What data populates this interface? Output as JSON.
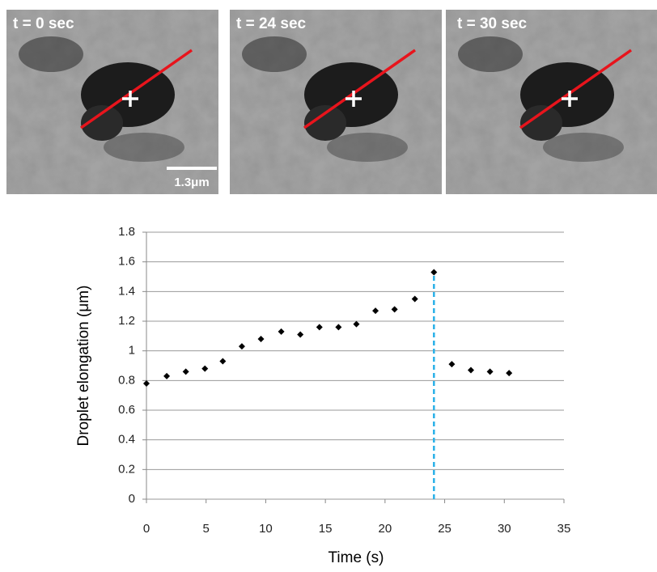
{
  "panels": [
    {
      "label": "t = 0 sec"
    },
    {
      "label": "t = 24 sec"
    },
    {
      "label": "t = 30 sec"
    }
  ],
  "scale_bar": "1.3μm",
  "chart_data": {
    "type": "scatter",
    "x_label": "Time (s)",
    "y_label": "Droplet elongation (μm)",
    "x": [
      0,
      1.7,
      3.3,
      4.9,
      6.4,
      8.0,
      9.6,
      11.3,
      12.9,
      14.5,
      16.1,
      17.6,
      19.2,
      20.8,
      22.5,
      24.1,
      25.6,
      27.2,
      28.8,
      30.4
    ],
    "values": [
      0.78,
      0.83,
      0.86,
      0.88,
      0.93,
      1.03,
      1.08,
      1.13,
      1.11,
      1.16,
      1.16,
      1.18,
      1.27,
      1.28,
      1.35,
      1.53,
      0.91,
      0.87,
      0.86,
      0.85
    ],
    "color": "#000000",
    "reference_line": {
      "x": 24.1,
      "color": "#29b0e8"
    },
    "xlim": [
      0,
      35
    ],
    "xticks": [
      0,
      5,
      10,
      15,
      20,
      25,
      30,
      35
    ],
    "ylim": [
      0,
      1.8
    ],
    "yticks": [
      0,
      0.2,
      0.4,
      0.6,
      0.8,
      1,
      1.2,
      1.4,
      1.6,
      1.8
    ],
    "grid": true
  }
}
